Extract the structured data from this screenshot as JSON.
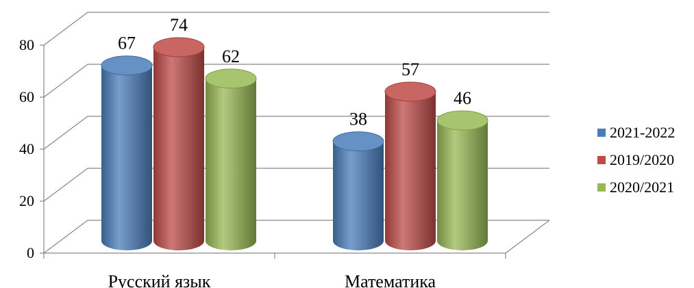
{
  "chart_data": {
    "type": "bar",
    "style": "3d-cylinder",
    "title": "",
    "xlabel": "",
    "ylabel": "",
    "ylim": [
      0,
      80
    ],
    "yticks": [
      0,
      20,
      40,
      60,
      80
    ],
    "grid": true,
    "legend_position": "right",
    "categories": [
      "Русский язык",
      "Математика"
    ],
    "series": [
      {
        "name": "2021-2022",
        "values": [
          67,
          38
        ],
        "color": "#4a7ebb"
      },
      {
        "name": "2019/2020",
        "values": [
          74,
          57
        ],
        "color": "#be4b48"
      },
      {
        "name": "2020/2021",
        "values": [
          62,
          46
        ],
        "color": "#98b954"
      }
    ]
  }
}
